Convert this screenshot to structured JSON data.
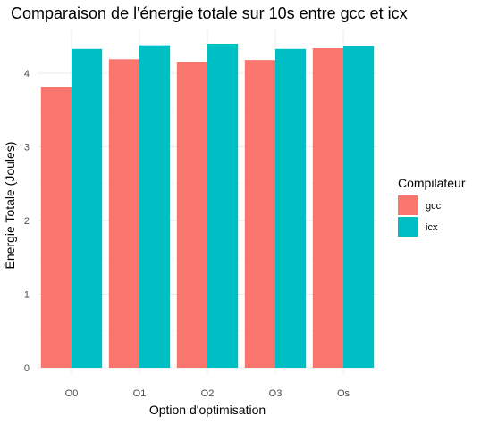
{
  "chart_data": {
    "type": "bar",
    "title": "Comparaison de l'énergie totale sur 10s entre gcc et icx",
    "xlabel": "Option d'optimisation",
    "ylabel": "Énergie Totale (Joules)",
    "categories": [
      "O0",
      "O1",
      "O2",
      "O3",
      "Os"
    ],
    "series": [
      {
        "name": "gcc",
        "color": "#F8766D",
        "values": [
          3.81,
          4.19,
          4.15,
          4.18,
          4.34
        ]
      },
      {
        "name": "icx",
        "color": "#00BFC4",
        "values": [
          4.33,
          4.38,
          4.4,
          4.33,
          4.37
        ]
      }
    ],
    "ylim": [
      0,
      4.5
    ],
    "yticks": [
      0,
      1,
      2,
      3,
      4
    ],
    "grid": true,
    "legend": {
      "title": "Compilateur",
      "position": "right"
    }
  }
}
